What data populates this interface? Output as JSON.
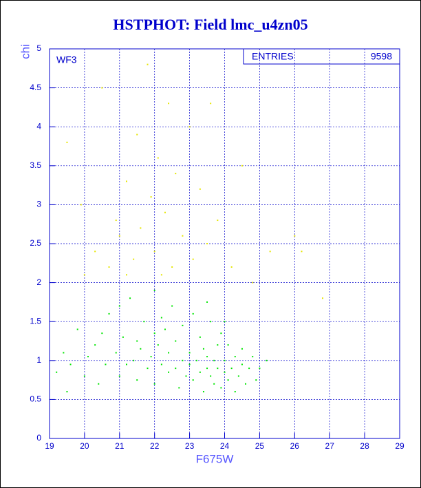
{
  "chart_data": {
    "type": "scatter",
    "title": "HSTPHOT: Field lmc_u4zn05",
    "x_label": "F675W",
    "y_label": "chi",
    "annotation": "WF3",
    "stats": {
      "label": "ENTRIES",
      "value": 9598
    },
    "xlim": [
      19,
      29
    ],
    "ylim": [
      0,
      5
    ],
    "xticks": [
      19,
      20,
      21,
      22,
      23,
      24,
      25,
      26,
      27,
      28,
      29
    ],
    "yticks": [
      0,
      0.5,
      1,
      1.5,
      2,
      2.5,
      3,
      3.5,
      4,
      4.5,
      5
    ],
    "grid": true,
    "grid_color": "#0000cc",
    "axis_color": "#0000cc",
    "series": [
      {
        "color": "#00e600",
        "x": [
          19.2,
          19.4,
          19.6,
          19.8,
          20.0,
          20.1,
          20.3,
          20.4,
          20.6,
          20.7,
          20.9,
          21.0,
          21.1,
          21.2,
          21.3,
          21.4,
          21.5,
          21.6,
          21.7,
          21.8,
          21.9,
          22.0,
          22.0,
          22.1,
          22.2,
          22.3,
          22.4,
          22.4,
          22.5,
          22.6,
          22.6,
          22.7,
          22.8,
          22.8,
          22.9,
          23.0,
          23.0,
          23.1,
          23.1,
          23.2,
          23.3,
          23.3,
          23.4,
          23.4,
          23.5,
          23.5,
          23.6,
          23.6,
          23.7,
          23.7,
          23.8,
          23.8,
          23.9,
          23.9,
          24.0,
          24.0,
          24.1,
          24.1,
          24.2,
          24.3,
          24.3,
          24.4,
          24.5,
          24.5,
          24.6,
          24.7,
          24.8,
          24.9,
          25.0,
          25.2,
          21.5,
          22.2,
          23.5,
          22.0,
          20.5,
          19.5,
          24.0,
          21.0
        ],
        "values": [
          0.85,
          1.1,
          0.95,
          1.4,
          0.8,
          1.05,
          1.2,
          0.7,
          0.95,
          1.6,
          1.1,
          0.8,
          1.3,
          0.95,
          1.8,
          1.0,
          0.75,
          1.15,
          1.5,
          0.9,
          1.05,
          1.9,
          0.7,
          1.2,
          0.95,
          1.4,
          0.85,
          1.1,
          1.7,
          0.9,
          1.25,
          0.65,
          1.0,
          1.45,
          0.8,
          1.1,
          0.95,
          1.6,
          0.75,
          1.0,
          1.3,
          0.85,
          0.6,
          1.15,
          0.9,
          1.05,
          1.5,
          0.8,
          1.0,
          0.7,
          1.2,
          0.9,
          0.65,
          1.35,
          0.85,
          1.0,
          0.75,
          1.2,
          0.9,
          0.6,
          1.05,
          0.8,
          0.95,
          1.15,
          0.7,
          0.9,
          1.05,
          0.75,
          0.9,
          1.0,
          1.25,
          1.55,
          1.75,
          1.35,
          1.35,
          0.6,
          1.5,
          1.7
        ]
      },
      {
        "color": "#e6e600",
        "x": [
          19.5,
          19.9,
          20.3,
          20.5,
          20.7,
          20.9,
          21.0,
          21.2,
          21.4,
          21.5,
          21.6,
          21.8,
          21.9,
          22.0,
          22.1,
          22.3,
          22.4,
          22.5,
          22.6,
          22.8,
          23.0,
          23.1,
          23.3,
          23.5,
          23.6,
          23.8,
          24.2,
          24.5,
          24.8,
          25.3,
          26.0,
          26.2,
          26.8,
          21.2,
          22.2,
          20.0
        ],
        "values": [
          3.8,
          3.0,
          2.4,
          4.5,
          2.2,
          2.8,
          2.6,
          3.3,
          2.3,
          3.9,
          2.7,
          4.8,
          3.1,
          2.4,
          3.6,
          2.9,
          4.3,
          2.2,
          3.4,
          2.6,
          4.0,
          2.3,
          3.2,
          2.5,
          4.3,
          2.8,
          2.2,
          3.5,
          2.0,
          2.4,
          2.6,
          2.4,
          1.8,
          2.1,
          2.1,
          2.1
        ]
      }
    ]
  }
}
